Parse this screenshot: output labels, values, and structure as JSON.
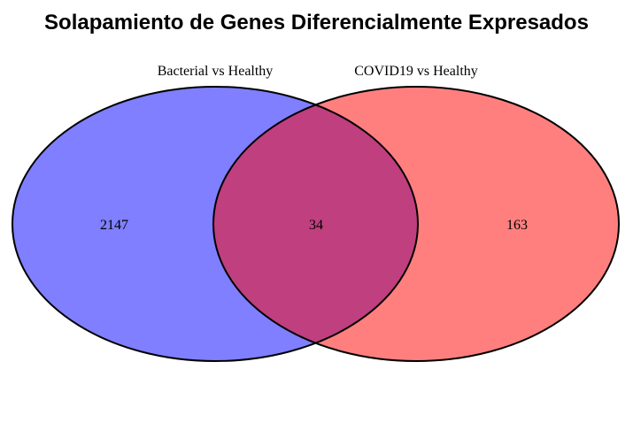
{
  "title": "Solapamiento de Genes Diferencialmente Expresados",
  "sets": [
    {
      "name": "Bacterial vs Healthy",
      "color": "#0000ff",
      "count_only": "2147"
    },
    {
      "name": "COVID19 vs Healthy",
      "color": "#ff0000",
      "count_only": "163"
    }
  ],
  "intersection": {
    "count": "34"
  },
  "style": {
    "fill_opacity": 0.5,
    "outline": "#000000"
  }
}
